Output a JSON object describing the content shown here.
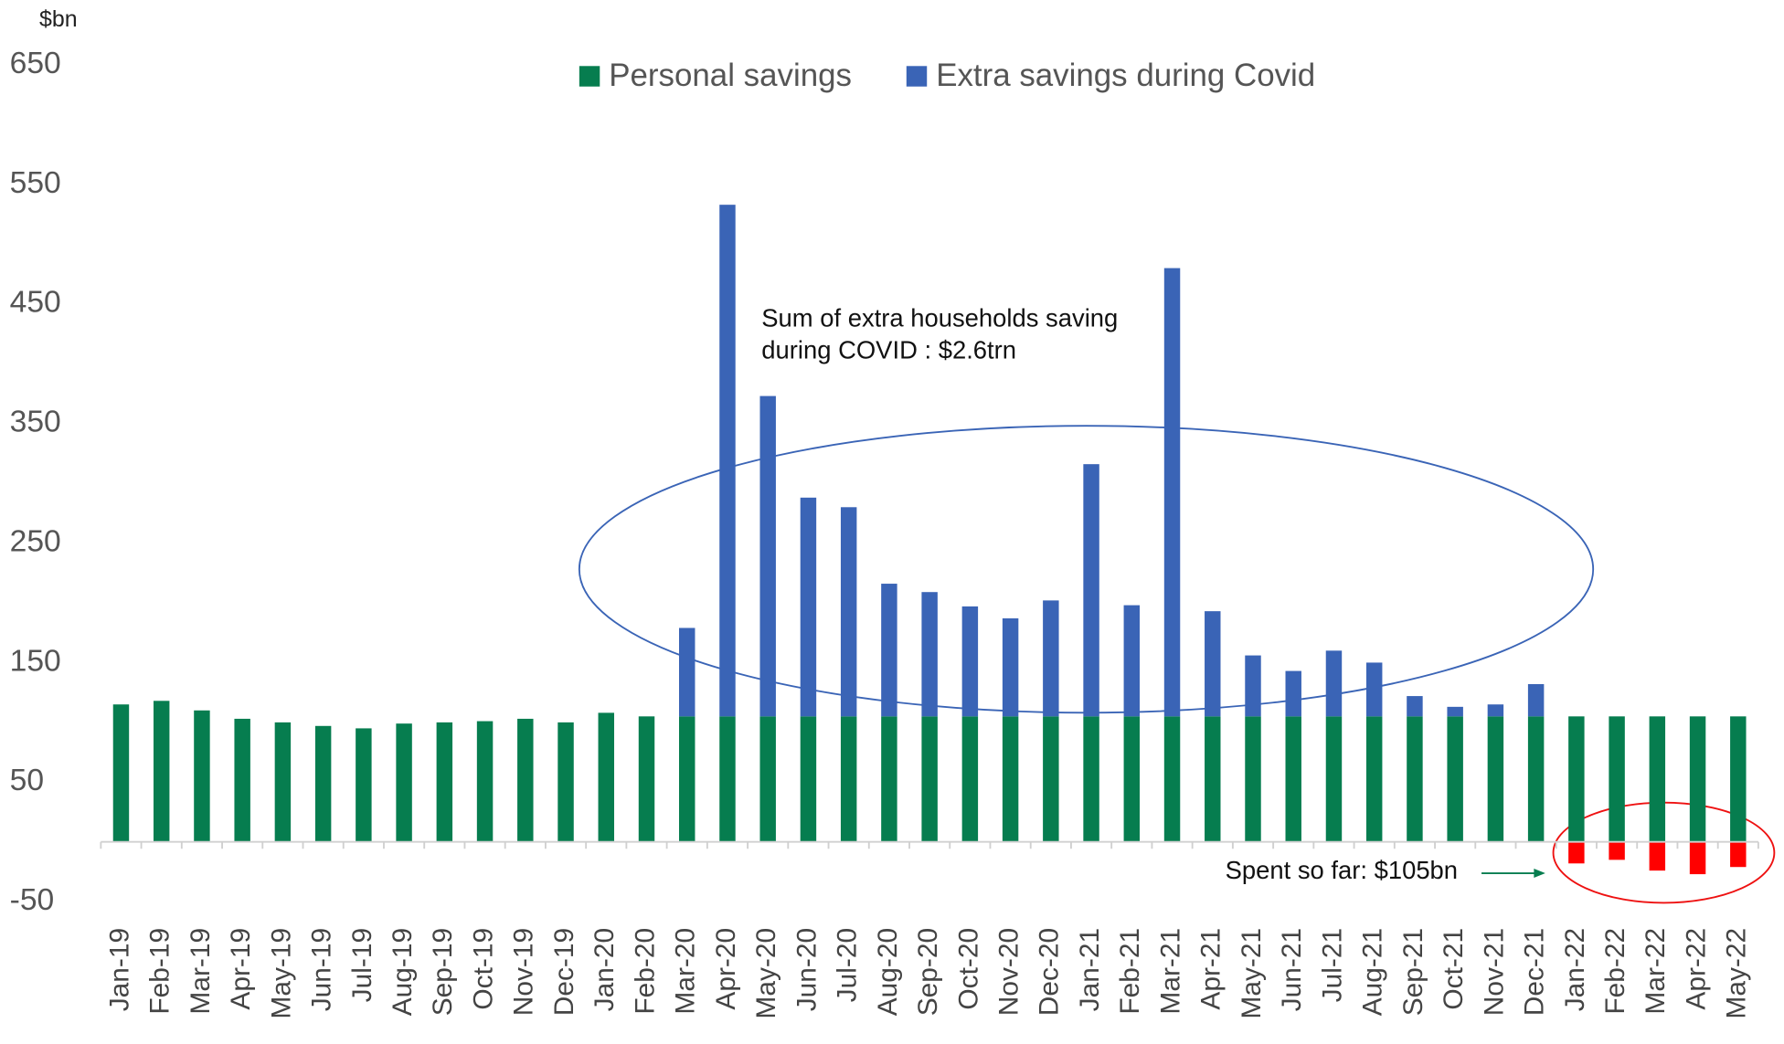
{
  "chart_data": {
    "type": "stacked_bar",
    "y_label": "$bn",
    "categories": [
      "Jan-19",
      "Feb-19",
      "Mar-19",
      "Apr-19",
      "May-19",
      "Jun-19",
      "Jul-19",
      "Aug-19",
      "Sep-19",
      "Oct-19",
      "Nov-19",
      "Dec-19",
      "Jan-20",
      "Feb-20",
      "Mar-20",
      "Apr-20",
      "May-20",
      "Jun-20",
      "Jul-20",
      "Aug-20",
      "Sep-20",
      "Oct-20",
      "Nov-20",
      "Dec-20",
      "Jan-21",
      "Feb-21",
      "Mar-21",
      "Apr-21",
      "May-21",
      "Jun-21",
      "Jul-21",
      "Aug-21",
      "Sep-21",
      "Oct-21",
      "Nov-21",
      "Dec-21",
      "Jan-22",
      "Feb-22",
      "Mar-22",
      "Apr-22",
      "May-22"
    ],
    "series": [
      {
        "name": "Personal savings",
        "color": "#067d4f",
        "values": [
          115,
          118,
          110,
          103,
          100,
          97,
          95,
          99,
          100,
          101,
          103,
          100,
          108,
          105,
          105,
          105,
          105,
          105,
          105,
          105,
          105,
          105,
          105,
          105,
          105,
          105,
          105,
          105,
          105,
          105,
          105,
          105,
          105,
          105,
          105,
          105,
          105,
          105,
          105,
          105,
          105
        ]
      },
      {
        "name": "Extra savings during Covid",
        "color": "#3a64b6",
        "negative_color": "#ff0000",
        "values": [
          null,
          null,
          null,
          null,
          null,
          null,
          null,
          null,
          null,
          null,
          null,
          null,
          null,
          null,
          74,
          428,
          268,
          183,
          175,
          111,
          104,
          92,
          82,
          97,
          211,
          93,
          375,
          88,
          51,
          38,
          55,
          45,
          17,
          8,
          10,
          27,
          -18,
          -15,
          -24,
          -27,
          -21
        ]
      }
    ],
    "ylim": [
      -50,
      650
    ],
    "yticks": [
      650,
      550,
      450,
      350,
      250,
      150,
      50,
      -50
    ],
    "grid": false,
    "legend": "top",
    "annotations": [
      "Sum of extra households saving",
      "during COVID : $2.6trn",
      "Spent so far: $105bn"
    ]
  }
}
